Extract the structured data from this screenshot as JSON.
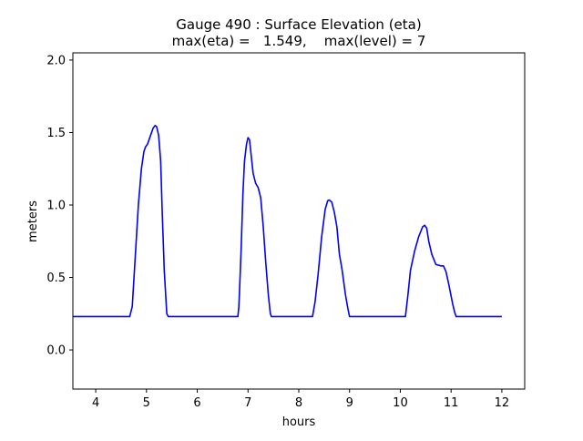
{
  "chart_data": {
    "type": "line",
    "title_line1": "Gauge 490 : Surface Elevation (eta)",
    "title_line2": "max(eta) =   1.549,    max(level) = 7",
    "xlabel": "hours",
    "ylabel": "meters",
    "xlim": [
      3.55,
      12.45
    ],
    "ylim": [
      -0.27,
      2.05
    ],
    "xticks": [
      4,
      5,
      6,
      7,
      8,
      9,
      10,
      11,
      12
    ],
    "yticks": [
      0.0,
      0.5,
      1.0,
      1.5,
      2.0
    ],
    "xtick_labels": [
      "4",
      "5",
      "6",
      "7",
      "8",
      "9",
      "10",
      "11",
      "12"
    ],
    "ytick_labels": [
      "0.0",
      "0.5",
      "1.0",
      "1.5",
      "2.0"
    ],
    "grid": false,
    "series": [
      {
        "color": "#0000ff",
        "x": [
          3.55,
          4.67,
          4.72,
          4.78,
          4.84,
          4.9,
          4.95,
          4.98,
          5.02,
          5.05,
          5.09,
          5.13,
          5.17,
          5.2,
          5.24,
          5.28,
          5.31,
          5.35,
          5.4,
          5.43,
          5.9,
          6.8,
          6.82,
          6.86,
          6.9,
          6.93,
          6.97,
          7.0,
          7.03,
          7.06,
          7.1,
          7.15,
          7.2,
          7.25,
          7.3,
          7.35,
          7.4,
          7.44,
          7.46,
          8.0,
          8.27,
          8.32,
          8.38,
          8.45,
          8.52,
          8.57,
          8.6,
          8.65,
          8.7,
          8.75,
          8.8,
          8.85,
          8.92,
          8.97,
          9.0,
          9.1,
          10.0,
          10.1,
          10.15,
          10.2,
          10.28,
          10.36,
          10.44,
          10.48,
          10.52,
          10.56,
          10.62,
          10.7,
          10.8,
          10.85,
          10.9,
          10.95,
          11.03,
          11.07,
          11.1,
          11.5,
          12.0
        ],
        "y": [
          0.23,
          0.23,
          0.3,
          0.65,
          1.0,
          1.25,
          1.37,
          1.4,
          1.42,
          1.45,
          1.49,
          1.53,
          1.549,
          1.54,
          1.48,
          1.3,
          0.95,
          0.55,
          0.25,
          0.23,
          0.23,
          0.23,
          0.3,
          0.65,
          1.08,
          1.3,
          1.42,
          1.465,
          1.45,
          1.35,
          1.22,
          1.15,
          1.12,
          1.05,
          0.85,
          0.6,
          0.38,
          0.25,
          0.23,
          0.23,
          0.23,
          0.33,
          0.52,
          0.78,
          0.97,
          1.03,
          1.035,
          1.02,
          0.95,
          0.85,
          0.66,
          0.56,
          0.38,
          0.28,
          0.23,
          0.23,
          0.23,
          0.23,
          0.38,
          0.55,
          0.68,
          0.78,
          0.85,
          0.86,
          0.84,
          0.75,
          0.66,
          0.59,
          0.58,
          0.58,
          0.54,
          0.46,
          0.32,
          0.26,
          0.23,
          0.23,
          0.23
        ]
      }
    ]
  }
}
